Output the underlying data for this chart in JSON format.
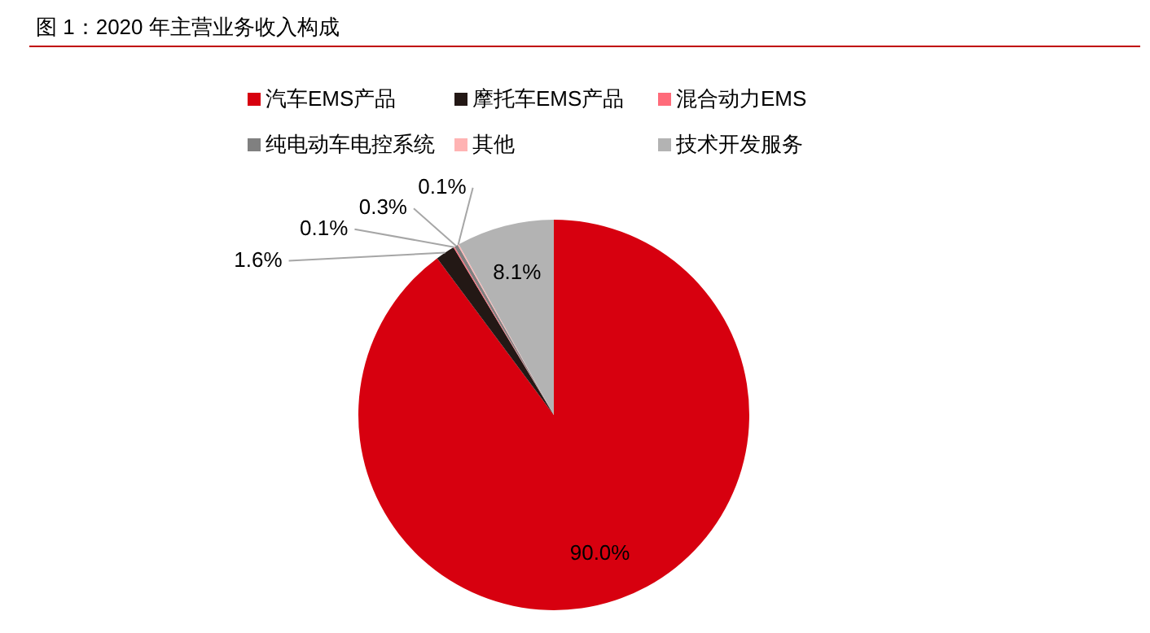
{
  "chart_data": {
    "type": "pie",
    "title": "图 1：2020 年主营业务收入构成",
    "categories": [
      "汽车EMS产品",
      "摩托车EMS产品",
      "混合动力EMS",
      "纯电动车电控系统",
      "其他",
      "技术开发服务"
    ],
    "values": [
      90.0,
      1.6,
      0.1,
      0.3,
      0.1,
      8.1
    ],
    "colors": [
      "#d7000f",
      "#231815",
      "#ff6b7a",
      "#808080",
      "#ffb3b3",
      "#b3b3b3"
    ],
    "value_labels": [
      "90.0%",
      "1.6%",
      "0.1%",
      "0.3%",
      "0.1%",
      "8.1%"
    ],
    "legend": "top"
  }
}
